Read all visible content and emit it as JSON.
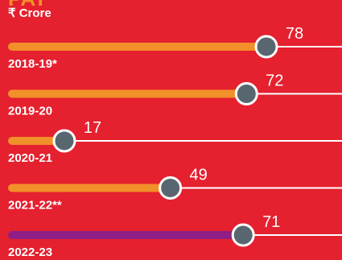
{
  "header": {
    "title": "PAT",
    "unit": "₹ Crore"
  },
  "colors": {
    "background": "#e5202f",
    "bar_default": "#f2902a",
    "bar_highlight": "#8f1f86",
    "knob": "#58666f",
    "track": "#ffffff"
  },
  "chart_data": {
    "type": "bar",
    "orientation": "horizontal",
    "title": "PAT",
    "unit": "₹ Crore",
    "categories": [
      "2018-19*",
      "2019-20",
      "2020-21",
      "2021-22**",
      "2022-23"
    ],
    "values": [
      78,
      72,
      17,
      49,
      71
    ],
    "highlight": "2022-23",
    "xlim": [
      0,
      78
    ],
    "grid": false,
    "legend": "none"
  }
}
